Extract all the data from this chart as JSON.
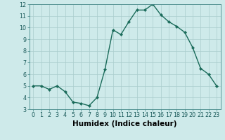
{
  "x": [
    0,
    1,
    2,
    3,
    4,
    5,
    6,
    7,
    8,
    9,
    10,
    11,
    12,
    13,
    14,
    15,
    16,
    17,
    18,
    19,
    20,
    21,
    22,
    23
  ],
  "y": [
    5.0,
    5.0,
    4.7,
    5.0,
    4.5,
    3.6,
    3.5,
    3.3,
    4.0,
    6.4,
    9.8,
    9.4,
    10.5,
    11.5,
    11.5,
    12.0,
    11.1,
    10.5,
    10.1,
    9.6,
    8.3,
    6.5,
    6.0,
    5.0
  ],
  "xlabel": "Humidex (Indice chaleur)",
  "ylim": [
    3,
    12
  ],
  "xlim_min": -0.5,
  "xlim_max": 23.5,
  "yticks": [
    3,
    4,
    5,
    6,
    7,
    8,
    9,
    10,
    11,
    12
  ],
  "xticks": [
    0,
    1,
    2,
    3,
    4,
    5,
    6,
    7,
    8,
    9,
    10,
    11,
    12,
    13,
    14,
    15,
    16,
    17,
    18,
    19,
    20,
    21,
    22,
    23
  ],
  "xtick_labels": [
    "0",
    "1",
    "2",
    "3",
    "4",
    "5",
    "6",
    "7",
    "8",
    "9",
    "10",
    "11",
    "12",
    "13",
    "14",
    "15",
    "16",
    "17",
    "18",
    "19",
    "20",
    "21",
    "22",
    "23"
  ],
  "line_color": "#1a6b5a",
  "marker_color": "#1a6b5a",
  "bg_color": "#ceeaea",
  "grid_color": "#aacccc",
  "tick_label_fontsize": 5.8,
  "xlabel_fontsize": 7.5,
  "marker_size": 2.2,
  "line_width": 1.0
}
